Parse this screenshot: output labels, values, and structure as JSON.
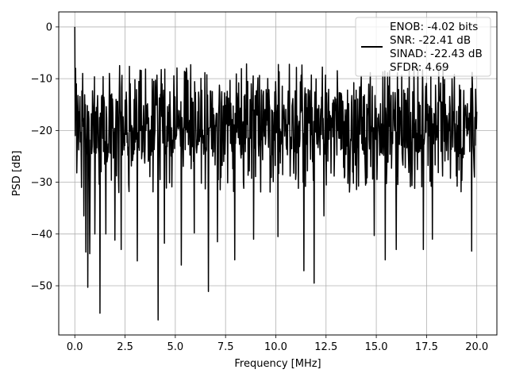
{
  "chart_data": {
    "type": "line",
    "title": "",
    "xlabel": "Frequency [MHz]",
    "ylabel": "PSD [dB]",
    "xlim": [
      -0.8,
      21.0
    ],
    "ylim": [
      -59.5,
      2.9
    ],
    "grid": true,
    "line_color": "#000000",
    "legend_position": "top-right",
    "x_ticks": [
      0.0,
      2.5,
      5.0,
      7.5,
      10.0,
      12.5,
      15.0,
      17.5,
      20.0
    ],
    "x_tick_labels": [
      "0.0",
      "2.5",
      "5.0",
      "7.5",
      "10.0",
      "12.5",
      "15.0",
      "17.5",
      "20.0"
    ],
    "y_ticks": [
      0,
      -10,
      -20,
      -30,
      -40,
      -50
    ],
    "y_tick_labels": [
      "0",
      "−10",
      "−20",
      "−30",
      "−40",
      "−50"
    ],
    "legend": {
      "lines": [
        "ENOB: -4.02 bits",
        "SNR: -22.41 dB",
        "SINAD: -22.43 dB",
        "SFDR: 4.69"
      ]
    },
    "series": [
      {
        "x_range": [
          0.0,
          20.0
        ],
        "points": 1024,
        "typical_range_db": [
          -25,
          -12
        ],
        "peak_db": 0,
        "dips": [
          {
            "x": 0.45,
            "y": -36.5
          },
          {
            "x": 0.55,
            "y": -43.5
          },
          {
            "x": 0.65,
            "y": -50.3
          },
          {
            "x": 0.75,
            "y": -43.8
          },
          {
            "x": 1.0,
            "y": -40.0
          },
          {
            "x": 1.25,
            "y": -55.3
          },
          {
            "x": 1.55,
            "y": -40.0
          },
          {
            "x": 2.0,
            "y": -41.2
          },
          {
            "x": 2.3,
            "y": -43.0
          },
          {
            "x": 3.1,
            "y": -45.2
          },
          {
            "x": 4.15,
            "y": -56.6
          },
          {
            "x": 4.45,
            "y": -41.8
          },
          {
            "x": 5.3,
            "y": -46.0
          },
          {
            "x": 5.95,
            "y": -39.8
          },
          {
            "x": 6.65,
            "y": -51.1
          },
          {
            "x": 7.1,
            "y": -41.5
          },
          {
            "x": 7.95,
            "y": -45.0
          },
          {
            "x": 8.9,
            "y": -41.0
          },
          {
            "x": 10.1,
            "y": -40.5
          },
          {
            "x": 11.4,
            "y": -47.1
          },
          {
            "x": 11.9,
            "y": -49.5
          },
          {
            "x": 12.4,
            "y": -36.5
          },
          {
            "x": 14.9,
            "y": -40.3
          },
          {
            "x": 15.45,
            "y": -45.0
          },
          {
            "x": 16.0,
            "y": -43.0
          },
          {
            "x": 17.35,
            "y": -43.0
          },
          {
            "x": 17.8,
            "y": -41.0
          },
          {
            "x": 19.75,
            "y": -43.3
          }
        ]
      }
    ]
  }
}
